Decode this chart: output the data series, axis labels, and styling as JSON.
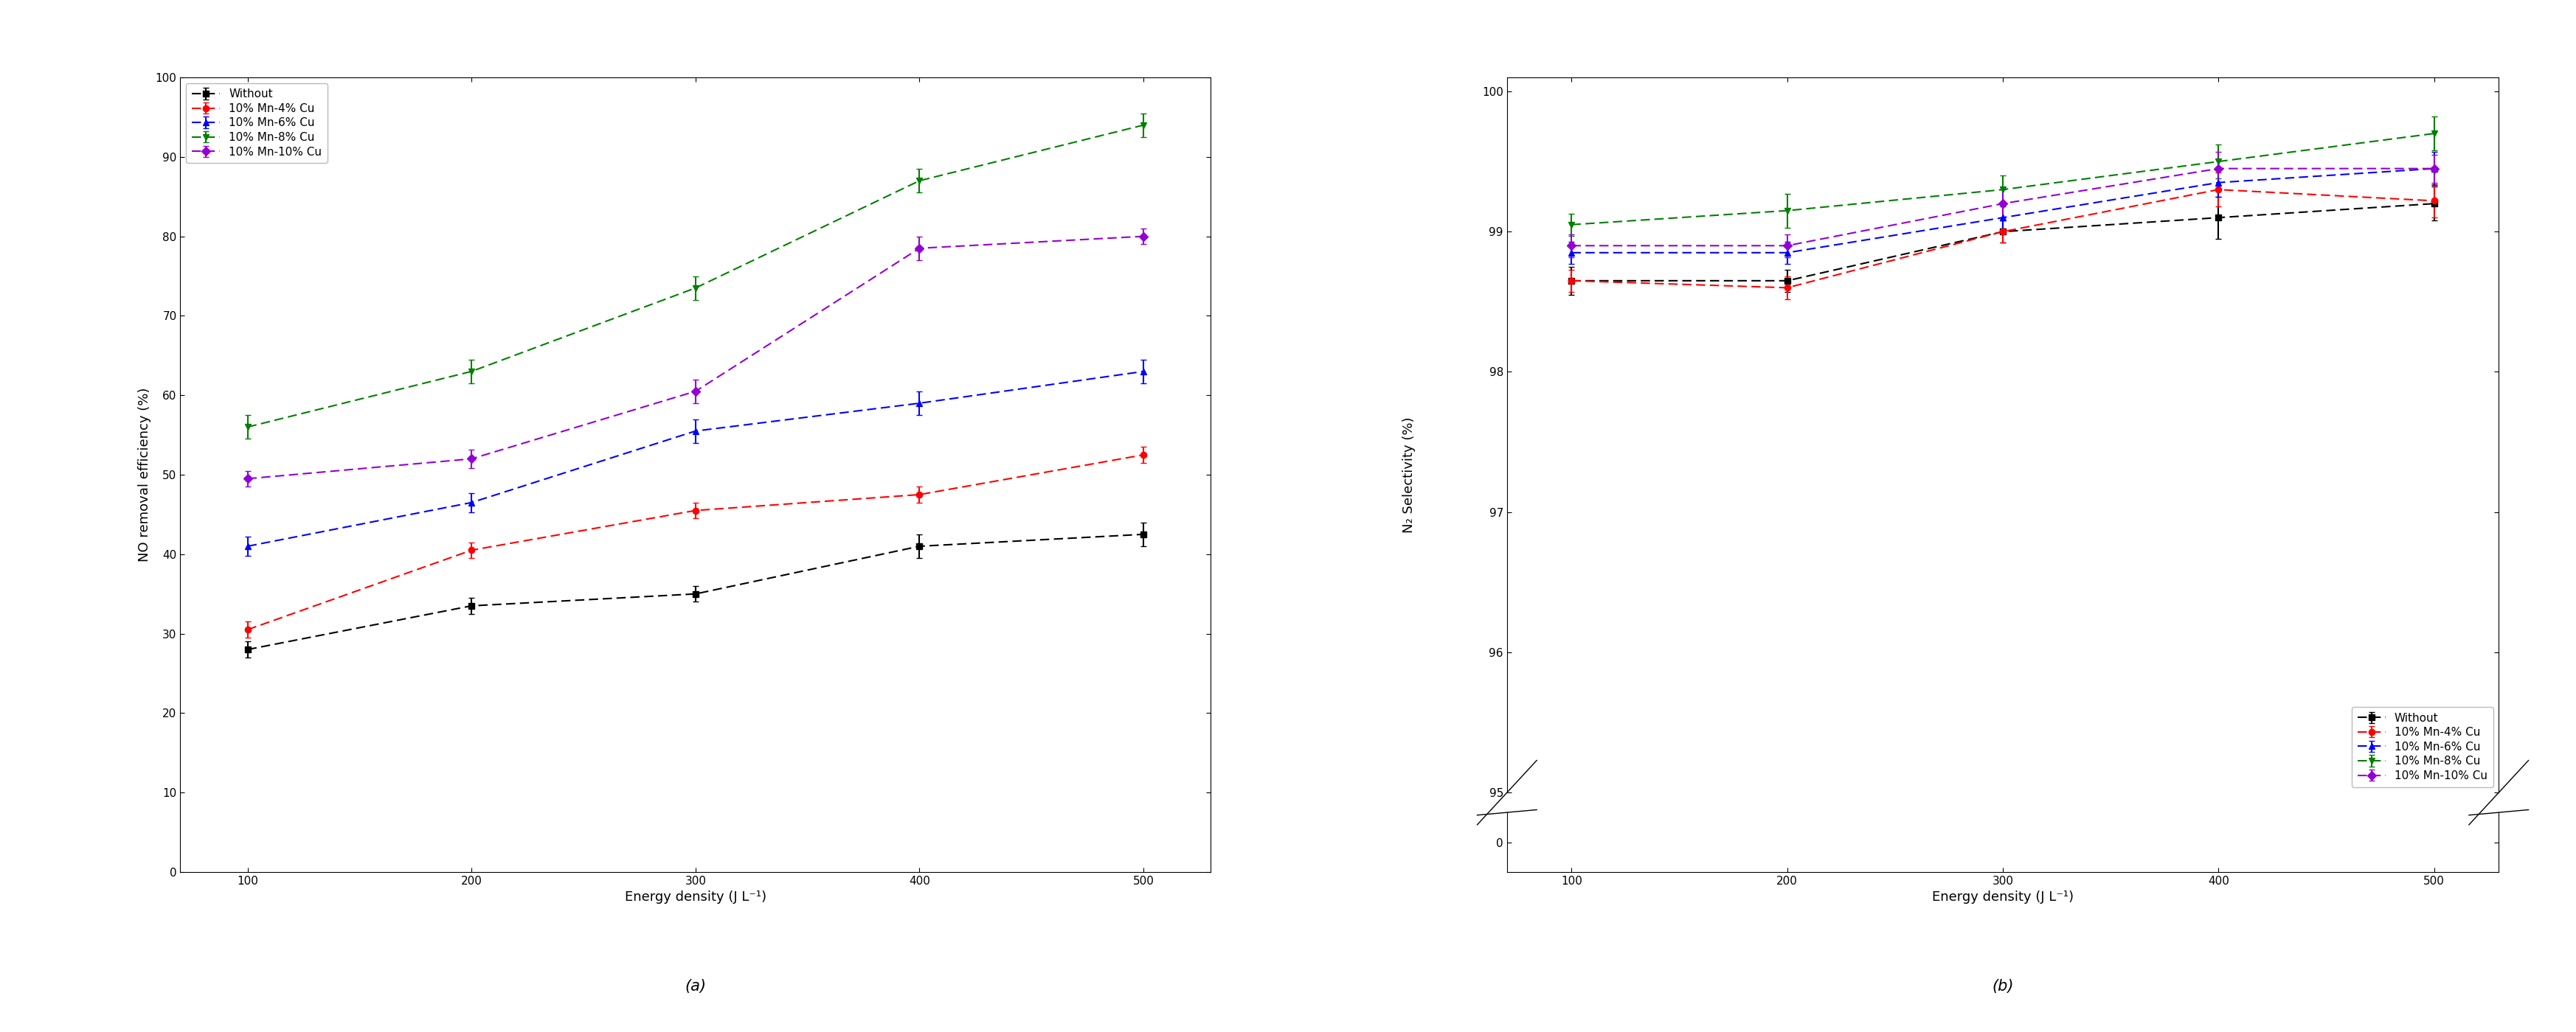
{
  "x": [
    100,
    200,
    300,
    400,
    500
  ],
  "panel_a": {
    "title": "(a)",
    "xlabel": "Energy density (J L⁻¹)",
    "ylabel": "NO removal efficiency (%)",
    "ylim": [
      0,
      100
    ],
    "yticks": [
      0,
      10,
      20,
      30,
      40,
      50,
      60,
      70,
      80,
      90,
      100
    ],
    "series": [
      {
        "label": "Without",
        "color": "#000000",
        "marker": "s",
        "y": [
          28,
          33.5,
          35,
          41,
          42.5
        ],
        "yerr": [
          1.0,
          1.0,
          1.0,
          1.5,
          1.5
        ]
      },
      {
        "label": "10% Mn-4% Cu",
        "color": "#ff0000",
        "marker": "o",
        "y": [
          30.5,
          40.5,
          45.5,
          47.5,
          52.5
        ],
        "yerr": [
          1.0,
          1.0,
          1.0,
          1.0,
          1.0
        ]
      },
      {
        "label": "10% Mn-6% Cu",
        "color": "#0000ff",
        "marker": "^",
        "y": [
          41,
          46.5,
          55.5,
          59,
          63
        ],
        "yerr": [
          1.2,
          1.2,
          1.5,
          1.5,
          1.5
        ]
      },
      {
        "label": "10% Mn-8% Cu",
        "color": "#008000",
        "marker": "v",
        "y": [
          56,
          63,
          73.5,
          87,
          94
        ],
        "yerr": [
          1.5,
          1.5,
          1.5,
          1.5,
          1.5
        ]
      },
      {
        "label": "10% Mn-10% Cu",
        "color": "#9400d3",
        "marker": "D",
        "y": [
          49.5,
          52,
          60.5,
          78.5,
          80
        ],
        "yerr": [
          1.0,
          1.2,
          1.5,
          1.5,
          1.0
        ]
      }
    ]
  },
  "panel_b": {
    "title": "(b)",
    "xlabel": "Energy density (J L⁻¹)",
    "ylabel": "N₂ Selectivity (%)",
    "ylim_upper": [
      95.0,
      100.1
    ],
    "yticks_upper": [
      95,
      96,
      97,
      98,
      99,
      100
    ],
    "ylim_lower": [
      -1,
      1
    ],
    "yticks_lower": [
      0
    ],
    "series": [
      {
        "label": "Without",
        "color": "#000000",
        "marker": "s",
        "y": [
          98.65,
          98.65,
          99.0,
          99.1,
          99.2
        ],
        "yerr": [
          0.1,
          0.08,
          0.08,
          0.15,
          0.12
        ]
      },
      {
        "label": "10% Mn-4% Cu",
        "color": "#ff0000",
        "marker": "o",
        "y": [
          98.65,
          98.6,
          99.0,
          99.3,
          99.22
        ],
        "yerr": [
          0.08,
          0.08,
          0.08,
          0.12,
          0.12
        ]
      },
      {
        "label": "10% Mn-6% Cu",
        "color": "#0000ff",
        "marker": "^",
        "y": [
          98.85,
          98.85,
          99.1,
          99.35,
          99.45
        ],
        "yerr": [
          0.08,
          0.08,
          0.08,
          0.1,
          0.12
        ]
      },
      {
        "label": "10% Mn-8% Cu",
        "color": "#008000",
        "marker": "v",
        "y": [
          99.05,
          99.15,
          99.3,
          99.5,
          99.7
        ],
        "yerr": [
          0.08,
          0.12,
          0.1,
          0.12,
          0.12
        ]
      },
      {
        "label": "10% Mn-10% Cu",
        "color": "#9400d3",
        "marker": "D",
        "y": [
          98.9,
          98.9,
          99.2,
          99.45,
          99.45
        ],
        "yerr": [
          0.08,
          0.08,
          0.1,
          0.12,
          0.1
        ]
      }
    ]
  }
}
